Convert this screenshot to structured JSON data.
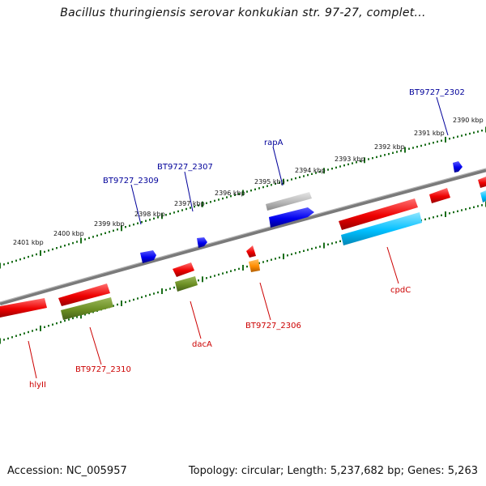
{
  "title": "Bacillus thuringiensis serovar konkukian str. 97-27, complet...",
  "footer": {
    "accession": "Accession: NC_005957",
    "topology": "Topology: circular; Length: 5,237,682 bp; Genes: 5,263"
  },
  "colors": {
    "backbone": "#808080",
    "forward_gene": "#ff0000",
    "reverse_gene": "#0000ff",
    "pseudo_gene": "#b0b0b0",
    "olive_gene": "#6b8e23",
    "cyan_gene": "#00bfff",
    "orange_gene": "#ff8c00",
    "forward_label": "#cc0000",
    "reverse_label": "#00009a",
    "ticks": "#1a6e1a"
  },
  "scale_labels": [
    "2401 kbp",
    "2400 kbp",
    "2399 kbp",
    "2398 kbp",
    "2397 kbp",
    "2396 kbp",
    "2395 kbp",
    "2394 kbp",
    "2393 kbp",
    "2392 kbp",
    "2391 kbp",
    "2390 kbp"
  ],
  "genes_top": [
    {
      "label": "BT9727_2309"
    },
    {
      "label": "BT9727_2307"
    },
    {
      "label": "rapA"
    },
    {
      "label": "BT9727_2302"
    }
  ],
  "genes_bottom": [
    {
      "label": "hlyII"
    },
    {
      "label": "BT9727_2310"
    },
    {
      "label": "dacA"
    },
    {
      "label": "BT9727_2306"
    },
    {
      "label": "cpdC"
    }
  ]
}
